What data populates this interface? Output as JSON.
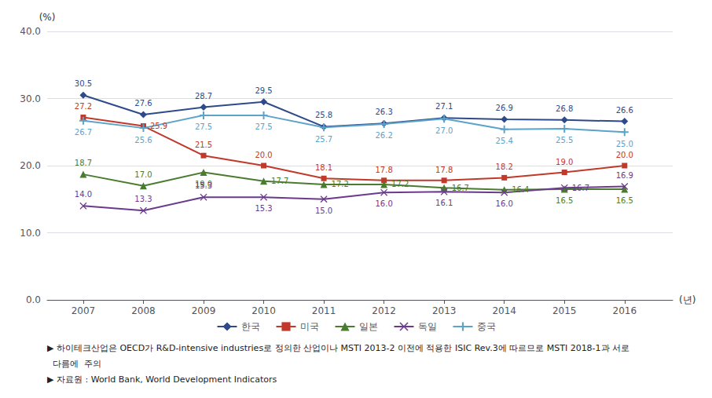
{
  "chart_data": {
    "type": "line",
    "x": [
      2007,
      2008,
      2009,
      2010,
      2011,
      2012,
      2013,
      2014,
      2015,
      2016
    ],
    "xlim": [
      2006.4,
      2016.8
    ],
    "xticks": [
      2007,
      2008,
      2009,
      2010,
      2011,
      2012,
      2013,
      2014,
      2015,
      2016
    ],
    "ylim": [
      0.0,
      40.0
    ],
    "yticks": [
      {
        "value": 0,
        "label": "0.0"
      },
      {
        "value": 10,
        "label": "10.0"
      },
      {
        "value": 20,
        "label": "20.0"
      },
      {
        "value": 30,
        "label": "30.0"
      },
      {
        "value": 40,
        "label": "40.0"
      }
    ],
    "ylabel": "(%)",
    "xlabel": "(년)",
    "grid": true,
    "legend": "bottom",
    "data_labels": true,
    "series": [
      {
        "name": "한국",
        "color": "#2E4A8B",
        "marker": "diamond",
        "values": [
          30.5,
          27.6,
          28.7,
          29.5,
          25.8,
          26.3,
          27.1,
          26.9,
          26.8,
          26.6
        ],
        "value_labels": [
          "30.5",
          "27.6",
          "28.7",
          "29.5",
          "25.8",
          "26.3",
          "27.1",
          "26.9",
          "26.8",
          "26.6"
        ]
      },
      {
        "name": "미국",
        "color": "#C0392B",
        "marker": "square",
        "values": [
          27.2,
          25.9,
          21.5,
          20.0,
          18.1,
          17.8,
          17.8,
          18.2,
          19.0,
          20.0
        ],
        "value_labels": [
          "27.2",
          "25.9",
          "21.5",
          "20.0",
          "18.1",
          "17.8",
          "17.8",
          "18.2",
          "19.0",
          "20.0"
        ]
      },
      {
        "name": "일본",
        "color": "#4a7c2f",
        "marker": "triangle",
        "values": [
          18.7,
          17.0,
          19.0,
          17.7,
          17.2,
          17.2,
          16.7,
          16.4,
          16.5,
          16.5
        ],
        "value_labels": [
          "18.7",
          "17.0",
          "19.0",
          "17.7",
          "17.2",
          "17.2",
          "16.7",
          "16.4",
          "16.5",
          "16.5"
        ]
      },
      {
        "name": "독일",
        "color": "#6B3A8C",
        "marker": "x",
        "values": [
          14.0,
          13.3,
          15.3,
          15.3,
          15.0,
          16.0,
          16.1,
          16.0,
          16.7,
          16.9
        ],
        "value_labels": [
          "14.0",
          "13.3",
          "15.3",
          "15.3",
          "15.0",
          "16.0",
          "16.1",
          "16.0",
          "16.7",
          "16.9"
        ]
      },
      {
        "name": "중국",
        "color": "#5BA3C9",
        "marker": "plus",
        "values": [
          26.7,
          25.6,
          27.5,
          27.5,
          25.7,
          26.2,
          27.0,
          25.4,
          25.5,
          25.0
        ],
        "value_labels": [
          "26.7",
          "25.6",
          "27.5",
          "27.5",
          "25.7",
          "26.2",
          "27.0",
          "25.4",
          "25.5",
          "25.0"
        ]
      }
    ],
    "footnotes": [
      "▶ 하이테크산업은 OECD가 R&D-intensive industries로 정의한 산업이나 MSTI 2013-2 이전에 적용한 ISIC Rev.3에 따르므로 MSTI 2018-1과 서로",
      "  다름에  주의",
      "▶ 자료원 : World Bank, World Development Indicators"
    ]
  }
}
